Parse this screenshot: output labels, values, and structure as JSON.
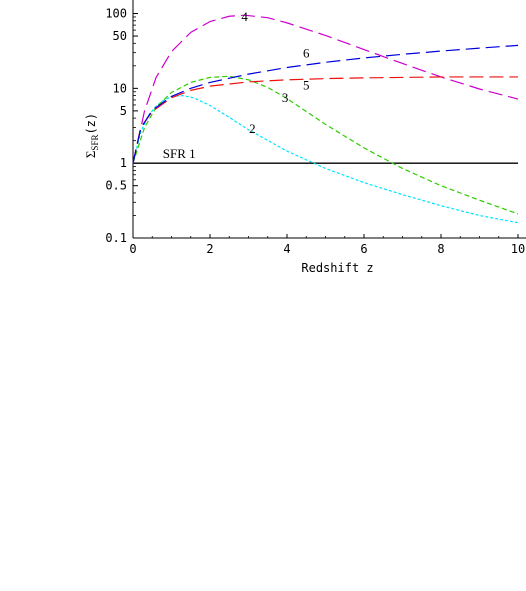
{
  "chart_data": {
    "type": "line",
    "title": "",
    "xlabel": "Redshift z",
    "ylabel": "Σ_SFR(z)",
    "ylabel_main": "Σ",
    "ylabel_sub": "SFR",
    "ylabel_tail": "(z)",
    "xlim": [
      0,
      10
    ],
    "ylim": [
      0.1,
      130
    ],
    "yscale": "log",
    "grid": false,
    "x_ticks": [
      "0",
      "2",
      "4",
      "6",
      "8",
      "10"
    ],
    "y_ticks": [
      "0.1",
      "0.5",
      "1",
      "5",
      "10",
      "50",
      "100"
    ],
    "series": [
      {
        "name": "SFR 1",
        "label": "SFR 1",
        "color": "#000000",
        "dash": "solid",
        "x": [
          0,
          10
        ],
        "y": [
          1,
          1
        ]
      },
      {
        "name": "2",
        "label": "2",
        "color": "#00e5ff",
        "dash": "short",
        "x": [
          0,
          0.2,
          0.4,
          0.6,
          0.8,
          1.0,
          1.3,
          1.6,
          2.0,
          2.5,
          3.0,
          4.0,
          5.0,
          6.0,
          7.0,
          8.0,
          9.0,
          10.0
        ],
        "y": [
          1,
          2.6,
          4.3,
          5.8,
          6.9,
          7.8,
          8.0,
          7.4,
          5.9,
          4.1,
          2.8,
          1.45,
          0.85,
          0.55,
          0.38,
          0.27,
          0.2,
          0.16
        ]
      },
      {
        "name": "3",
        "label": "3",
        "color": "#2ecc00",
        "dash": "medium",
        "x": [
          0,
          0.3,
          0.6,
          1.0,
          1.5,
          2.0,
          2.5,
          3.0,
          3.5,
          4.0,
          5.0,
          6.0,
          7.0,
          8.0,
          9.0,
          10.0
        ],
        "y": [
          1,
          3.0,
          5.6,
          8.8,
          12.0,
          14.0,
          14.5,
          13.0,
          10.3,
          7.3,
          3.3,
          1.6,
          0.85,
          0.5,
          0.32,
          0.21
        ]
      },
      {
        "name": "4",
        "label": "4",
        "color": "#cc00cc",
        "dash": "long",
        "x": [
          0,
          0.3,
          0.6,
          1.0,
          1.5,
          2.0,
          2.5,
          2.9,
          3.5,
          4.0,
          5.0,
          6.0,
          7.0,
          8.0,
          9.0,
          10.0
        ],
        "y": [
          1,
          5,
          14,
          31,
          56,
          78,
          92,
          95,
          88,
          75,
          51,
          33,
          21.5,
          14.2,
          9.8,
          7.2
        ]
      },
      {
        "name": "5",
        "label": "5",
        "color": "#ee1111",
        "dash": "long",
        "x": [
          0,
          0.2,
          0.5,
          1.0,
          1.5,
          2.0,
          3.0,
          4.0,
          5.0,
          6.0,
          7.0,
          8.0,
          9.0,
          10.0
        ],
        "y": [
          1,
          3.0,
          4.9,
          7.5,
          9.4,
          10.7,
          12.2,
          13.0,
          13.5,
          13.8,
          14.0,
          14.2,
          14.2,
          14.2
        ]
      },
      {
        "name": "6",
        "label": "6",
        "color": "#0000dd",
        "dash": "long",
        "x": [
          0,
          0.2,
          0.5,
          1.0,
          1.5,
          2.0,
          3.0,
          4.0,
          5.0,
          6.0,
          7.0,
          8.0,
          9.0,
          10.0
        ],
        "y": [
          1,
          2.9,
          5.1,
          7.8,
          10.0,
          12.0,
          15.5,
          19.0,
          22.3,
          25.5,
          28.5,
          31.5,
          34.5,
          37.5
        ]
      }
    ],
    "label_positions": [
      {
        "text": "SFR 1",
        "x": 1.2,
        "y": 1.18
      },
      {
        "text": "2",
        "x": 3.1,
        "y": 2.55
      },
      {
        "text": "3",
        "x": 3.95,
        "y": 6.6
      },
      {
        "text": "4",
        "x": 2.9,
        "y": 80
      },
      {
        "text": "5",
        "x": 4.5,
        "y": 9.6
      },
      {
        "text": "6",
        "x": 4.5,
        "y": 26
      }
    ]
  }
}
